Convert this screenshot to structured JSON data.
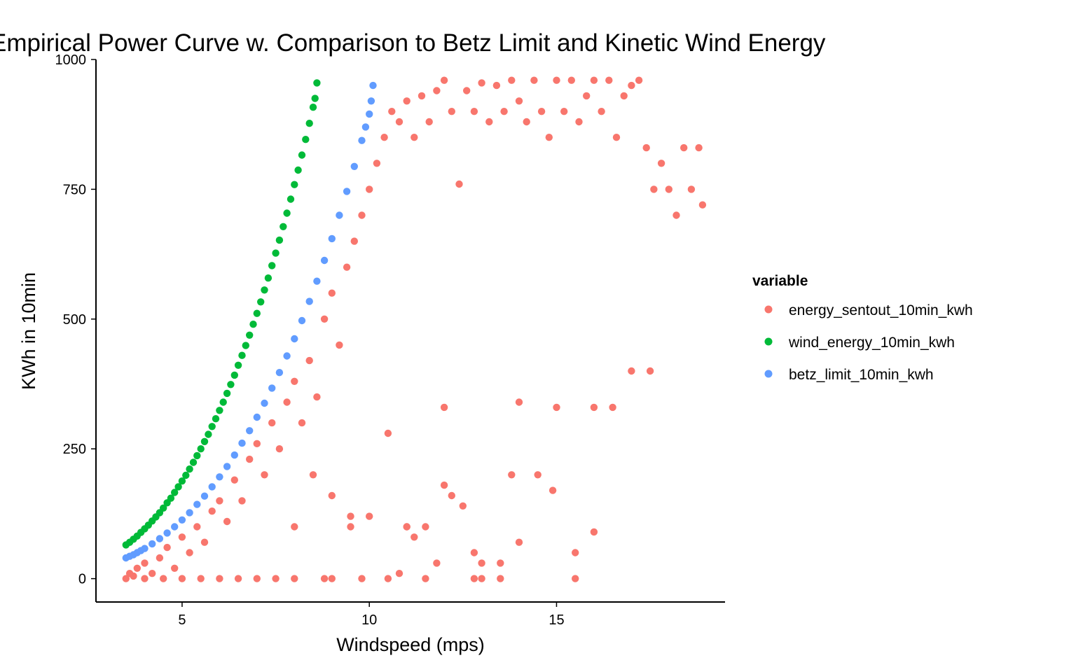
{
  "chart_data": {
    "type": "scatter",
    "title": "Empirical Power Curve w. Comparison to Betz Limit and Kinetic Wind Energy",
    "xlabel": "Windspeed (mps)",
    "ylabel": "KWh in 10min",
    "xlim": [
      2.7,
      19.5
    ],
    "ylim": [
      -45,
      1000
    ],
    "x_ticks": [
      5,
      10,
      15
    ],
    "y_ticks": [
      0,
      250,
      500,
      750,
      1000
    ],
    "x_tick_labels": [
      "5",
      "10",
      "15"
    ],
    "y_tick_labels": [
      "0",
      "250",
      "500",
      "750",
      "1000"
    ],
    "grid": false,
    "legend_title": "variable",
    "legend_position": "right",
    "series": [
      {
        "name": "energy_sentout_10min_kwh",
        "color": "#F8766D",
        "note_points": "dense cloud; representative sample",
        "points": [
          [
            3.5,
            0
          ],
          [
            3.6,
            10
          ],
          [
            3.7,
            5
          ],
          [
            3.8,
            20
          ],
          [
            4.0,
            0
          ],
          [
            4.0,
            30
          ],
          [
            4.2,
            10
          ],
          [
            4.4,
            40
          ],
          [
            4.5,
            0
          ],
          [
            4.6,
            60
          ],
          [
            4.8,
            20
          ],
          [
            5.0,
            0
          ],
          [
            5.0,
            80
          ],
          [
            5.2,
            50
          ],
          [
            5.4,
            100
          ],
          [
            5.5,
            0
          ],
          [
            5.6,
            70
          ],
          [
            5.8,
            130
          ],
          [
            6.0,
            0
          ],
          [
            6.0,
            150
          ],
          [
            6.2,
            110
          ],
          [
            6.4,
            190
          ],
          [
            6.5,
            0
          ],
          [
            6.6,
            150
          ],
          [
            6.8,
            230
          ],
          [
            7.0,
            0
          ],
          [
            7.0,
            260
          ],
          [
            7.2,
            200
          ],
          [
            7.4,
            300
          ],
          [
            7.5,
            0
          ],
          [
            7.6,
            250
          ],
          [
            7.8,
            340
          ],
          [
            8.0,
            100
          ],
          [
            8.0,
            380
          ],
          [
            8.2,
            300
          ],
          [
            8.4,
            420
          ],
          [
            8.5,
            200
          ],
          [
            8.6,
            350
          ],
          [
            8.8,
            500
          ],
          [
            9.0,
            0
          ],
          [
            9.0,
            550
          ],
          [
            9.2,
            450
          ],
          [
            9.4,
            600
          ],
          [
            9.5,
            100
          ],
          [
            9.6,
            650
          ],
          [
            9.8,
            700
          ],
          [
            10.0,
            120
          ],
          [
            10.0,
            750
          ],
          [
            10.2,
            800
          ],
          [
            10.4,
            850
          ],
          [
            10.6,
            900
          ],
          [
            10.8,
            880
          ],
          [
            11.0,
            100
          ],
          [
            11.0,
            920
          ],
          [
            11.2,
            850
          ],
          [
            11.4,
            930
          ],
          [
            11.6,
            880
          ],
          [
            11.8,
            940
          ],
          [
            12.0,
            960
          ],
          [
            12.0,
            330
          ],
          [
            12.2,
            900
          ],
          [
            12.4,
            760
          ],
          [
            12.6,
            940
          ],
          [
            12.8,
            900
          ],
          [
            13.0,
            955
          ],
          [
            13.0,
            0
          ],
          [
            13.2,
            880
          ],
          [
            13.4,
            950
          ],
          [
            13.6,
            900
          ],
          [
            13.8,
            960
          ],
          [
            14.0,
            920
          ],
          [
            14.0,
            340
          ],
          [
            14.2,
            880
          ],
          [
            14.4,
            960
          ],
          [
            14.6,
            900
          ],
          [
            14.8,
            850
          ],
          [
            15.0,
            960
          ],
          [
            15.0,
            330
          ],
          [
            15.2,
            900
          ],
          [
            15.4,
            960
          ],
          [
            15.6,
            880
          ],
          [
            15.8,
            930
          ],
          [
            16.0,
            960
          ],
          [
            16.0,
            330
          ],
          [
            16.2,
            900
          ],
          [
            16.4,
            960
          ],
          [
            16.6,
            850
          ],
          [
            16.8,
            930
          ],
          [
            17.0,
            950
          ],
          [
            17.2,
            960
          ],
          [
            17.4,
            830
          ],
          [
            17.6,
            750
          ],
          [
            17.8,
            800
          ],
          [
            18.0,
            750
          ],
          [
            18.2,
            700
          ],
          [
            18.4,
            830
          ],
          [
            18.6,
            750
          ],
          [
            18.8,
            830
          ],
          [
            18.9,
            720
          ],
          [
            17.0,
            400
          ],
          [
            17.5,
            400
          ],
          [
            16.5,
            330
          ],
          [
            15.5,
            0
          ],
          [
            12.8,
            0
          ],
          [
            13.5,
            0
          ],
          [
            11.5,
            0
          ],
          [
            10.5,
            0
          ],
          [
            9.8,
            0
          ],
          [
            8.8,
            0
          ],
          [
            8.0,
            0
          ],
          [
            14.9,
            170
          ],
          [
            15.5,
            50
          ],
          [
            16.0,
            90
          ],
          [
            14.0,
            70
          ],
          [
            13.5,
            30
          ],
          [
            12.5,
            140
          ],
          [
            12.0,
            180
          ],
          [
            11.5,
            100
          ],
          [
            11.0,
            100
          ],
          [
            10.8,
            10
          ],
          [
            11.8,
            30
          ],
          [
            12.8,
            50
          ],
          [
            13.0,
            30
          ],
          [
            14.5,
            200
          ],
          [
            13.8,
            200
          ],
          [
            12.2,
            160
          ],
          [
            11.2,
            80
          ],
          [
            10.5,
            280
          ],
          [
            9.5,
            120
          ],
          [
            9.0,
            160
          ]
        ]
      },
      {
        "name": "wind_energy_10min_kwh",
        "color": "#00BA38",
        "points": [
          [
            3.5,
            65
          ],
          [
            3.6,
            70
          ],
          [
            3.7,
            76
          ],
          [
            3.8,
            82
          ],
          [
            3.9,
            89
          ],
          [
            4.0,
            96
          ],
          [
            4.1,
            103
          ],
          [
            4.2,
            111
          ],
          [
            4.3,
            119
          ],
          [
            4.4,
            127
          ],
          [
            4.5,
            136
          ],
          [
            4.6,
            146
          ],
          [
            4.7,
            155
          ],
          [
            4.8,
            166
          ],
          [
            4.9,
            177
          ],
          [
            5.0,
            188
          ],
          [
            5.1,
            199
          ],
          [
            5.2,
            211
          ],
          [
            5.3,
            224
          ],
          [
            5.4,
            237
          ],
          [
            5.5,
            250
          ],
          [
            5.6,
            264
          ],
          [
            5.7,
            278
          ],
          [
            5.8,
            293
          ],
          [
            5.9,
            308
          ],
          [
            6.0,
            324
          ],
          [
            6.1,
            340
          ],
          [
            6.2,
            357
          ],
          [
            6.3,
            374
          ],
          [
            6.4,
            392
          ],
          [
            6.5,
            411
          ],
          [
            6.6,
            430
          ],
          [
            6.7,
            449
          ],
          [
            6.8,
            469
          ],
          [
            6.9,
            490
          ],
          [
            7.0,
            511
          ],
          [
            7.1,
            533
          ],
          [
            7.2,
            556
          ],
          [
            7.3,
            579
          ],
          [
            7.4,
            603
          ],
          [
            7.5,
            627
          ],
          [
            7.6,
            652
          ],
          [
            7.7,
            678
          ],
          [
            7.8,
            704
          ],
          [
            7.9,
            731
          ],
          [
            8.0,
            759
          ],
          [
            8.1,
            787
          ],
          [
            8.2,
            816
          ],
          [
            8.3,
            846
          ],
          [
            8.4,
            877
          ],
          [
            8.5,
            908
          ],
          [
            8.55,
            925
          ],
          [
            8.6,
            955
          ]
        ]
      },
      {
        "name": "betz_limit_10min_kwh",
        "color": "#619CFF",
        "points": [
          [
            3.5,
            40
          ],
          [
            3.6,
            43
          ],
          [
            3.7,
            46
          ],
          [
            3.8,
            50
          ],
          [
            3.9,
            54
          ],
          [
            4.0,
            58
          ],
          [
            4.2,
            67
          ],
          [
            4.4,
            77
          ],
          [
            4.6,
            88
          ],
          [
            4.8,
            100
          ],
          [
            5.0,
            113
          ],
          [
            5.2,
            127
          ],
          [
            5.4,
            143
          ],
          [
            5.6,
            159
          ],
          [
            5.8,
            177
          ],
          [
            6.0,
            196
          ],
          [
            6.2,
            216
          ],
          [
            6.4,
            238
          ],
          [
            6.6,
            261
          ],
          [
            6.8,
            285
          ],
          [
            7.0,
            311
          ],
          [
            7.2,
            338
          ],
          [
            7.4,
            367
          ],
          [
            7.6,
            397
          ],
          [
            7.8,
            429
          ],
          [
            8.0,
            462
          ],
          [
            8.2,
            497
          ],
          [
            8.4,
            534
          ],
          [
            8.6,
            573
          ],
          [
            8.8,
            613
          ],
          [
            9.0,
            655
          ],
          [
            9.2,
            700
          ],
          [
            9.4,
            746
          ],
          [
            9.6,
            794
          ],
          [
            9.8,
            844
          ],
          [
            9.9,
            870
          ],
          [
            10.0,
            895
          ],
          [
            10.05,
            920
          ],
          [
            10.1,
            950
          ]
        ]
      }
    ]
  }
}
